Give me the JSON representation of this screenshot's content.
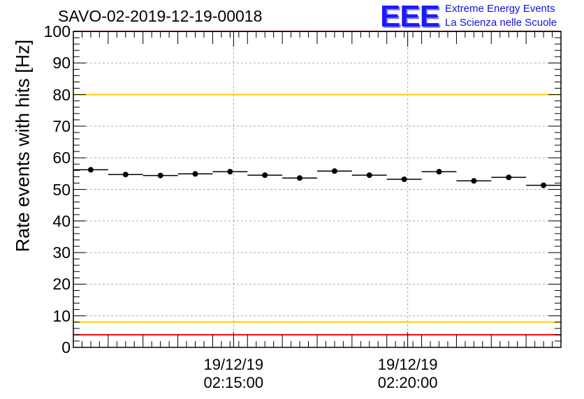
{
  "chart_data": {
    "type": "scatter",
    "title": "SAVO-02-2019-12-19-00018",
    "xlabel": "",
    "ylabel": "Rate events with hits [Hz]",
    "ylim": [
      0,
      100
    ],
    "yticks": [
      "0",
      "10",
      "20",
      "30",
      "40",
      "50",
      "60",
      "70",
      "80",
      "90",
      "100"
    ],
    "xlim_minutes": [
      0,
      14.0
    ],
    "xticks": [
      {
        "minute": 4.6,
        "date": "19/12/19",
        "time": "02:15:00"
      },
      {
        "minute": 9.6,
        "date": "19/12/19",
        "time": "02:20:00"
      }
    ],
    "grid": true,
    "bin_width_minutes": 1.0,
    "points": [
      {
        "x": 0.5,
        "y": 56.2
      },
      {
        "x": 1.5,
        "y": 54.7
      },
      {
        "x": 2.5,
        "y": 54.4
      },
      {
        "x": 3.5,
        "y": 54.9
      },
      {
        "x": 4.5,
        "y": 55.6
      },
      {
        "x": 5.5,
        "y": 54.5
      },
      {
        "x": 6.5,
        "y": 53.6
      },
      {
        "x": 7.5,
        "y": 55.8
      },
      {
        "x": 8.5,
        "y": 54.5
      },
      {
        "x": 9.5,
        "y": 53.2
      },
      {
        "x": 10.5,
        "y": 55.6
      },
      {
        "x": 11.5,
        "y": 52.7
      },
      {
        "x": 12.5,
        "y": 53.8
      },
      {
        "x": 13.5,
        "y": 51.3
      }
    ],
    "reference_lines": [
      {
        "y": 100,
        "color": "#ff0000"
      },
      {
        "y": 80,
        "color": "#ffcc00"
      },
      {
        "y": 8,
        "color": "#ffcc00"
      },
      {
        "y": 4,
        "color": "#ff0000"
      }
    ]
  },
  "logo": {
    "mark": "EEE",
    "line1": "Extreme Energy Events",
    "line2": "La Scienza nelle Scuole"
  }
}
